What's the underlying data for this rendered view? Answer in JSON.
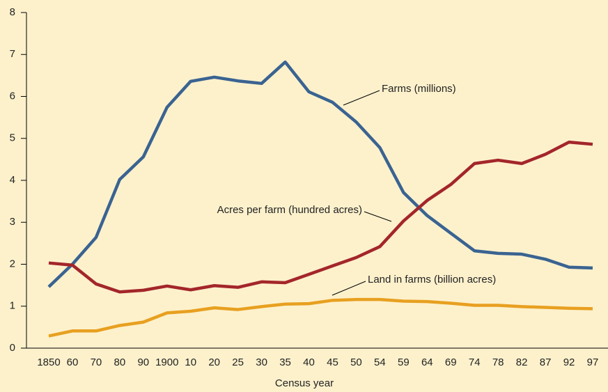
{
  "chart_data": {
    "type": "line",
    "xlabel": "Census year",
    "categories": [
      "1850",
      "60",
      "70",
      "80",
      "90",
      "1900",
      "10",
      "20",
      "25",
      "30",
      "35",
      "40",
      "45",
      "50",
      "54",
      "59",
      "64",
      "69",
      "74",
      "78",
      "82",
      "87",
      "92",
      "97"
    ],
    "series": [
      {
        "name": "Farms (millions)",
        "color": "#3a6391",
        "values": [
          1.46,
          2.0,
          2.64,
          4.02,
          4.56,
          5.74,
          6.36,
          6.46,
          6.37,
          6.31,
          6.82,
          6.11,
          5.86,
          5.39,
          4.78,
          3.71,
          3.16,
          2.74,
          2.32,
          2.26,
          2.24,
          2.12,
          1.93,
          1.91
        ]
      },
      {
        "name": "Acres per farm (hundred acres)",
        "color": "#a3262a",
        "values": [
          2.03,
          1.98,
          1.53,
          1.34,
          1.38,
          1.48,
          1.39,
          1.49,
          1.45,
          1.58,
          1.56,
          1.76,
          1.96,
          2.16,
          2.42,
          3.03,
          3.52,
          3.9,
          4.4,
          4.48,
          4.4,
          4.62,
          4.91,
          4.86
        ]
      },
      {
        "name": "Land in farms (billion acres)",
        "color": "#e8a020",
        "values": [
          0.29,
          0.41,
          0.41,
          0.54,
          0.62,
          0.84,
          0.88,
          0.96,
          0.92,
          0.99,
          1.05,
          1.06,
          1.14,
          1.16,
          1.16,
          1.12,
          1.11,
          1.07,
          1.02,
          1.02,
          0.99,
          0.97,
          0.95,
          0.94
        ]
      }
    ],
    "ylim": [
      0,
      8
    ],
    "yticks": [
      0,
      1,
      2,
      3,
      4,
      5,
      6,
      7,
      8
    ],
    "grid": false
  }
}
